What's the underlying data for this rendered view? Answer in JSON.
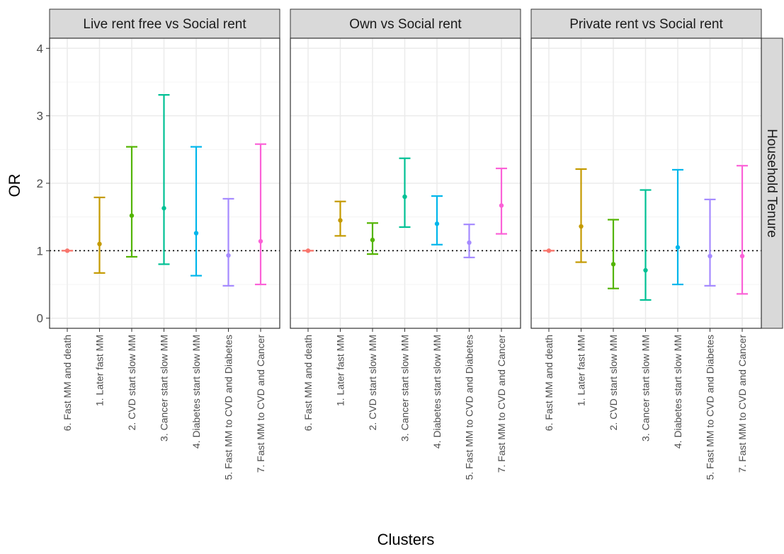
{
  "chart_data": {
    "type": "errorbar",
    "xlabel": "Clusters",
    "ylabel": "OR",
    "facet_row_label": "Household Tenure",
    "ylim": [
      -0.15,
      4.15
    ],
    "yticks": [
      0,
      1,
      2,
      3,
      4
    ],
    "reference_line": 1,
    "grid": true,
    "categories": [
      "6. Fast MM and death",
      "1. Later fast MM",
      "2. CVD start slow MM",
      "3. Cancer start slow MM",
      "4. Diabetes start slow MM",
      "5. Fast MM to CVD and Diabetes",
      "7. Fast MM to CVD and Cancer"
    ],
    "colors": [
      "#F8766D",
      "#C49A00",
      "#53B400",
      "#00C094",
      "#00B6EB",
      "#A58AFF",
      "#FB61D7"
    ],
    "panels": [
      {
        "title": "Live rent free vs Social rent",
        "or": [
          1.0,
          1.1,
          1.52,
          1.63,
          1.26,
          0.93,
          1.14
        ],
        "lower": [
          1.0,
          0.67,
          0.91,
          0.8,
          0.63,
          0.48,
          0.5
        ],
        "upper": [
          1.0,
          1.79,
          2.54,
          3.31,
          2.54,
          1.77,
          2.58
        ]
      },
      {
        "title": "Own vs Social rent",
        "or": [
          1.0,
          1.45,
          1.16,
          1.8,
          1.4,
          1.12,
          1.67
        ],
        "lower": [
          1.0,
          1.22,
          0.95,
          1.35,
          1.09,
          0.9,
          1.25
        ],
        "upper": [
          1.0,
          1.73,
          1.41,
          2.37,
          1.81,
          1.39,
          2.22
        ]
      },
      {
        "title": "Private rent vs Social rent",
        "or": [
          1.0,
          1.36,
          0.8,
          0.71,
          1.05,
          0.92,
          0.92
        ],
        "lower": [
          1.0,
          0.83,
          0.44,
          0.27,
          0.5,
          0.48,
          0.36
        ],
        "upper": [
          1.0,
          2.21,
          1.46,
          1.9,
          2.2,
          1.76,
          2.26
        ]
      }
    ]
  }
}
